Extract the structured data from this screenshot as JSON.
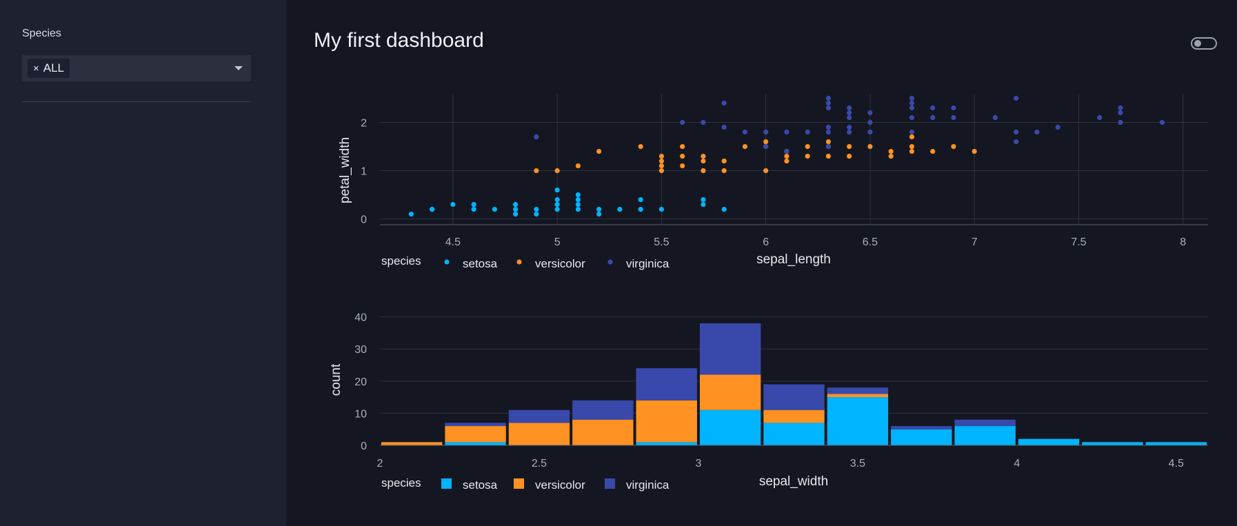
{
  "sidebar": {
    "filter_label": "Species",
    "selected_chip": "ALL",
    "chip_remove": "×"
  },
  "page": {
    "title": "My first dashboard"
  },
  "colors": {
    "setosa": "#00b4ff",
    "versicolor": "#ff9222",
    "virginica": "#3949ab",
    "grid": "#2e3240",
    "axis_text": "#a9aebb"
  },
  "chart_data": [
    {
      "type": "scatter",
      "xlabel": "sepal_length",
      "ylabel": "petal_width",
      "xlim": [
        4.15,
        8.12
      ],
      "ylim": [
        -0.12,
        2.65
      ],
      "xticks": [
        "4.5",
        "5",
        "5.5",
        "6",
        "6.5",
        "7",
        "7.5",
        "8"
      ],
      "yticks": [
        "0",
        "1",
        "2"
      ],
      "legend_title": "species",
      "legend_placement": "bottom",
      "series": [
        {
          "name": "setosa",
          "points": [
            [
              4.3,
              0.1
            ],
            [
              4.4,
              0.2
            ],
            [
              4.4,
              0.2
            ],
            [
              4.5,
              0.3
            ],
            [
              4.6,
              0.2
            ],
            [
              4.6,
              0.3
            ],
            [
              4.7,
              0.2
            ],
            [
              4.8,
              0.1
            ],
            [
              4.8,
              0.2
            ],
            [
              4.8,
              0.3
            ],
            [
              4.9,
              0.1
            ],
            [
              4.9,
              0.2
            ],
            [
              5,
              0.2
            ],
            [
              5,
              0.3
            ],
            [
              5,
              0.4
            ],
            [
              5,
              0.6
            ],
            [
              5.1,
              0.2
            ],
            [
              5.1,
              0.3
            ],
            [
              5.1,
              0.4
            ],
            [
              5.1,
              0.5
            ],
            [
              5.2,
              0.1
            ],
            [
              5.2,
              0.2
            ],
            [
              5.3,
              0.2
            ],
            [
              5.4,
              0.2
            ],
            [
              5.4,
              0.4
            ],
            [
              5.5,
              0.2
            ],
            [
              5.7,
              0.3
            ],
            [
              5.7,
              0.4
            ],
            [
              5.8,
              0.2
            ]
          ]
        },
        {
          "name": "versicolor",
          "points": [
            [
              4.9,
              1
            ],
            [
              5,
              1
            ],
            [
              5.1,
              1.1
            ],
            [
              5.2,
              1.4
            ],
            [
              5.4,
              1.5
            ],
            [
              5.5,
              1
            ],
            [
              5.5,
              1.1
            ],
            [
              5.5,
              1.2
            ],
            [
              5.5,
              1.3
            ],
            [
              5.6,
              1.1
            ],
            [
              5.6,
              1.3
            ],
            [
              5.6,
              1.5
            ],
            [
              5.7,
              1
            ],
            [
              5.7,
              1.2
            ],
            [
              5.7,
              1.3
            ],
            [
              5.8,
              1
            ],
            [
              5.8,
              1.2
            ],
            [
              5.9,
              1.5
            ],
            [
              6,
              1
            ],
            [
              6,
              1.5
            ],
            [
              6,
              1.6
            ],
            [
              6.1,
              1.2
            ],
            [
              6.1,
              1.3
            ],
            [
              6.1,
              1.4
            ],
            [
              6.2,
              1.3
            ],
            [
              6.2,
              1.5
            ],
            [
              6.3,
              1.3
            ],
            [
              6.3,
              1.5
            ],
            [
              6.3,
              1.6
            ],
            [
              6.4,
              1.3
            ],
            [
              6.4,
              1.5
            ],
            [
              6.5,
              1.5
            ],
            [
              6.6,
              1.3
            ],
            [
              6.6,
              1.4
            ],
            [
              6.7,
              1.4
            ],
            [
              6.7,
              1.5
            ],
            [
              6.7,
              1.7
            ],
            [
              6.8,
              1.4
            ],
            [
              6.9,
              1.5
            ],
            [
              7,
              1.4
            ]
          ]
        },
        {
          "name": "virginica",
          "points": [
            [
              4.9,
              1.7
            ],
            [
              5.6,
              2
            ],
            [
              5.7,
              2
            ],
            [
              5.8,
              1.9
            ],
            [
              5.8,
              2.4
            ],
            [
              5.9,
              1.8
            ],
            [
              6,
              1.5
            ],
            [
              6,
              1.8
            ],
            [
              6.1,
              1.4
            ],
            [
              6.1,
              1.8
            ],
            [
              6.2,
              1.8
            ],
            [
              6.3,
              1.5
            ],
            [
              6.3,
              1.8
            ],
            [
              6.3,
              1.9
            ],
            [
              6.3,
              2.3
            ],
            [
              6.3,
              2.4
            ],
            [
              6.3,
              2.5
            ],
            [
              6.4,
              1.8
            ],
            [
              6.4,
              1.9
            ],
            [
              6.4,
              2.1
            ],
            [
              6.4,
              2.2
            ],
            [
              6.4,
              2.3
            ],
            [
              6.5,
              1.8
            ],
            [
              6.5,
              2
            ],
            [
              6.5,
              2.2
            ],
            [
              6.7,
              1.8
            ],
            [
              6.7,
              2.1
            ],
            [
              6.7,
              2.3
            ],
            [
              6.7,
              2.4
            ],
            [
              6.7,
              2.5
            ],
            [
              6.8,
              2.1
            ],
            [
              6.8,
              2.3
            ],
            [
              6.9,
              2.1
            ],
            [
              6.9,
              2.3
            ],
            [
              7.1,
              2.1
            ],
            [
              7.2,
              1.6
            ],
            [
              7.2,
              1.8
            ],
            [
              7.2,
              2.5
            ],
            [
              7.3,
              1.8
            ],
            [
              7.4,
              1.9
            ],
            [
              7.6,
              2.1
            ],
            [
              7.7,
              2
            ],
            [
              7.7,
              2.2
            ],
            [
              7.7,
              2.3
            ],
            [
              7.9,
              2
            ]
          ]
        }
      ]
    },
    {
      "type": "bar",
      "stacked": true,
      "xlabel": "sepal_width",
      "ylabel": "count",
      "xlim": [
        2,
        4.6
      ],
      "ylim": [
        0,
        41
      ],
      "bin_width": 0.2,
      "xticks": [
        "2",
        "2.5",
        "3",
        "3.5",
        "4",
        "4.5"
      ],
      "yticks": [
        "0",
        "10",
        "20",
        "30",
        "40"
      ],
      "legend_title": "species",
      "legend_placement": "bottom",
      "bins": [
        2.0,
        2.2,
        2.4,
        2.6,
        2.8,
        3.0,
        3.2,
        3.4,
        3.6,
        3.8,
        4.0,
        4.2,
        4.4
      ],
      "series": [
        {
          "name": "setosa",
          "values": [
            0,
            1,
            0,
            0,
            1,
            11,
            7,
            15,
            5,
            6,
            2,
            1,
            1
          ]
        },
        {
          "name": "versicolor",
          "values": [
            1,
            5,
            7,
            8,
            13,
            11,
            4,
            1,
            0,
            0,
            0,
            0,
            0
          ]
        },
        {
          "name": "virginica",
          "values": [
            0,
            1,
            4,
            6,
            10,
            16,
            8,
            2,
            1,
            2,
            0,
            0,
            0
          ]
        }
      ]
    }
  ]
}
